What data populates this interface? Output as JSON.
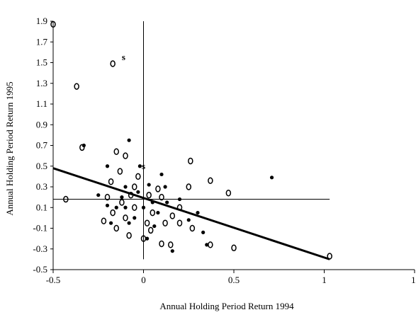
{
  "chart_data": {
    "type": "scatter",
    "xlabel": "Annual Holding Period Return 1994",
    "ylabel": "Annual Holding Period Return 1995",
    "xlim": [
      -0.5,
      1.5
    ],
    "xticks": [
      -0.5,
      0,
      0.5,
      1,
      {
        "value": 1.5,
        "label": "1."
      }
    ],
    "ylim": [
      -0.5,
      1.9
    ],
    "yticks": [
      -0.5,
      -0.3,
      -0.1,
      0.1,
      0.3,
      0.5,
      0.7,
      0.9,
      1.1,
      1.3,
      1.5,
      1.7,
      1.9
    ],
    "color": "#000000",
    "series": [
      {
        "marker": "o",
        "x": [
          -0.5,
          -0.37,
          -0.17,
          -0.34,
          -0.43,
          0.26,
          0.37,
          0.47,
          0.5,
          0.37,
          1.03,
          0.1,
          0.15,
          0.27,
          0.2,
          -0.15,
          -0.1,
          -0.18,
          -0.2,
          -0.12,
          -0.05,
          0,
          -0.08,
          -0.15,
          -0.22,
          0.08,
          0.05,
          -0.1,
          0.12,
          0.2,
          -0.05,
          0.03,
          0.25,
          -0.17,
          0.1,
          0.04,
          -0.03,
          0.02,
          -0.13,
          0.16,
          -0.07
        ],
        "values": [
          1.87,
          1.27,
          1.49,
          0.68,
          0.18,
          0.55,
          0.36,
          0.24,
          -0.29,
          -0.26,
          -0.37,
          -0.25,
          -0.26,
          -0.1,
          0.1,
          0.64,
          0.6,
          0.35,
          0.2,
          0.15,
          0.3,
          -0.2,
          -0.17,
          -0.1,
          -0.03,
          0.28,
          0.05,
          0,
          -0.05,
          -0.05,
          0.1,
          0.22,
          0.3,
          0.05,
          0.2,
          -0.12,
          0.4,
          -0.05,
          0.45,
          0.02,
          0.22
        ]
      },
      {
        "marker": "filled",
        "x": [
          0.71,
          -0.08,
          -0.33,
          0.33,
          0.35,
          0.16,
          -0.02,
          0.1,
          -0.2,
          -0.25,
          -0.15,
          -0.1,
          0,
          0.05,
          0.03,
          -0.05,
          0.08,
          -0.12,
          0.13,
          -0.2,
          0.2,
          0.02,
          -0.08,
          0.12,
          -0.03,
          0.06,
          -0.18,
          0.25,
          0.3,
          -0.1
        ],
        "values": [
          0.39,
          0.75,
          0.7,
          -0.14,
          -0.26,
          -0.32,
          0.5,
          0.42,
          0.5,
          0.22,
          0.1,
          0.3,
          0.1,
          0.15,
          0.32,
          0,
          0.05,
          0.2,
          0.15,
          0.12,
          0.18,
          -0.2,
          -0.05,
          0.3,
          0.25,
          -0.08,
          -0.05,
          -0.02,
          0.05,
          0.1
        ]
      },
      {
        "marker": "s",
        "x": [
          -0.11,
          0
        ],
        "values": [
          1.55,
          0.5
        ]
      }
    ],
    "lines": [
      {
        "x": [
          -0.5,
          1.03
        ],
        "values": [
          0.48,
          -0.4
        ],
        "width": 3
      },
      {
        "x": [
          -0.5,
          1.03
        ],
        "values": [
          0.18,
          0.18
        ],
        "width": 1
      },
      {
        "x": [
          0,
          0
        ],
        "values": [
          -0.4,
          1.9
        ],
        "width": 1
      }
    ]
  }
}
